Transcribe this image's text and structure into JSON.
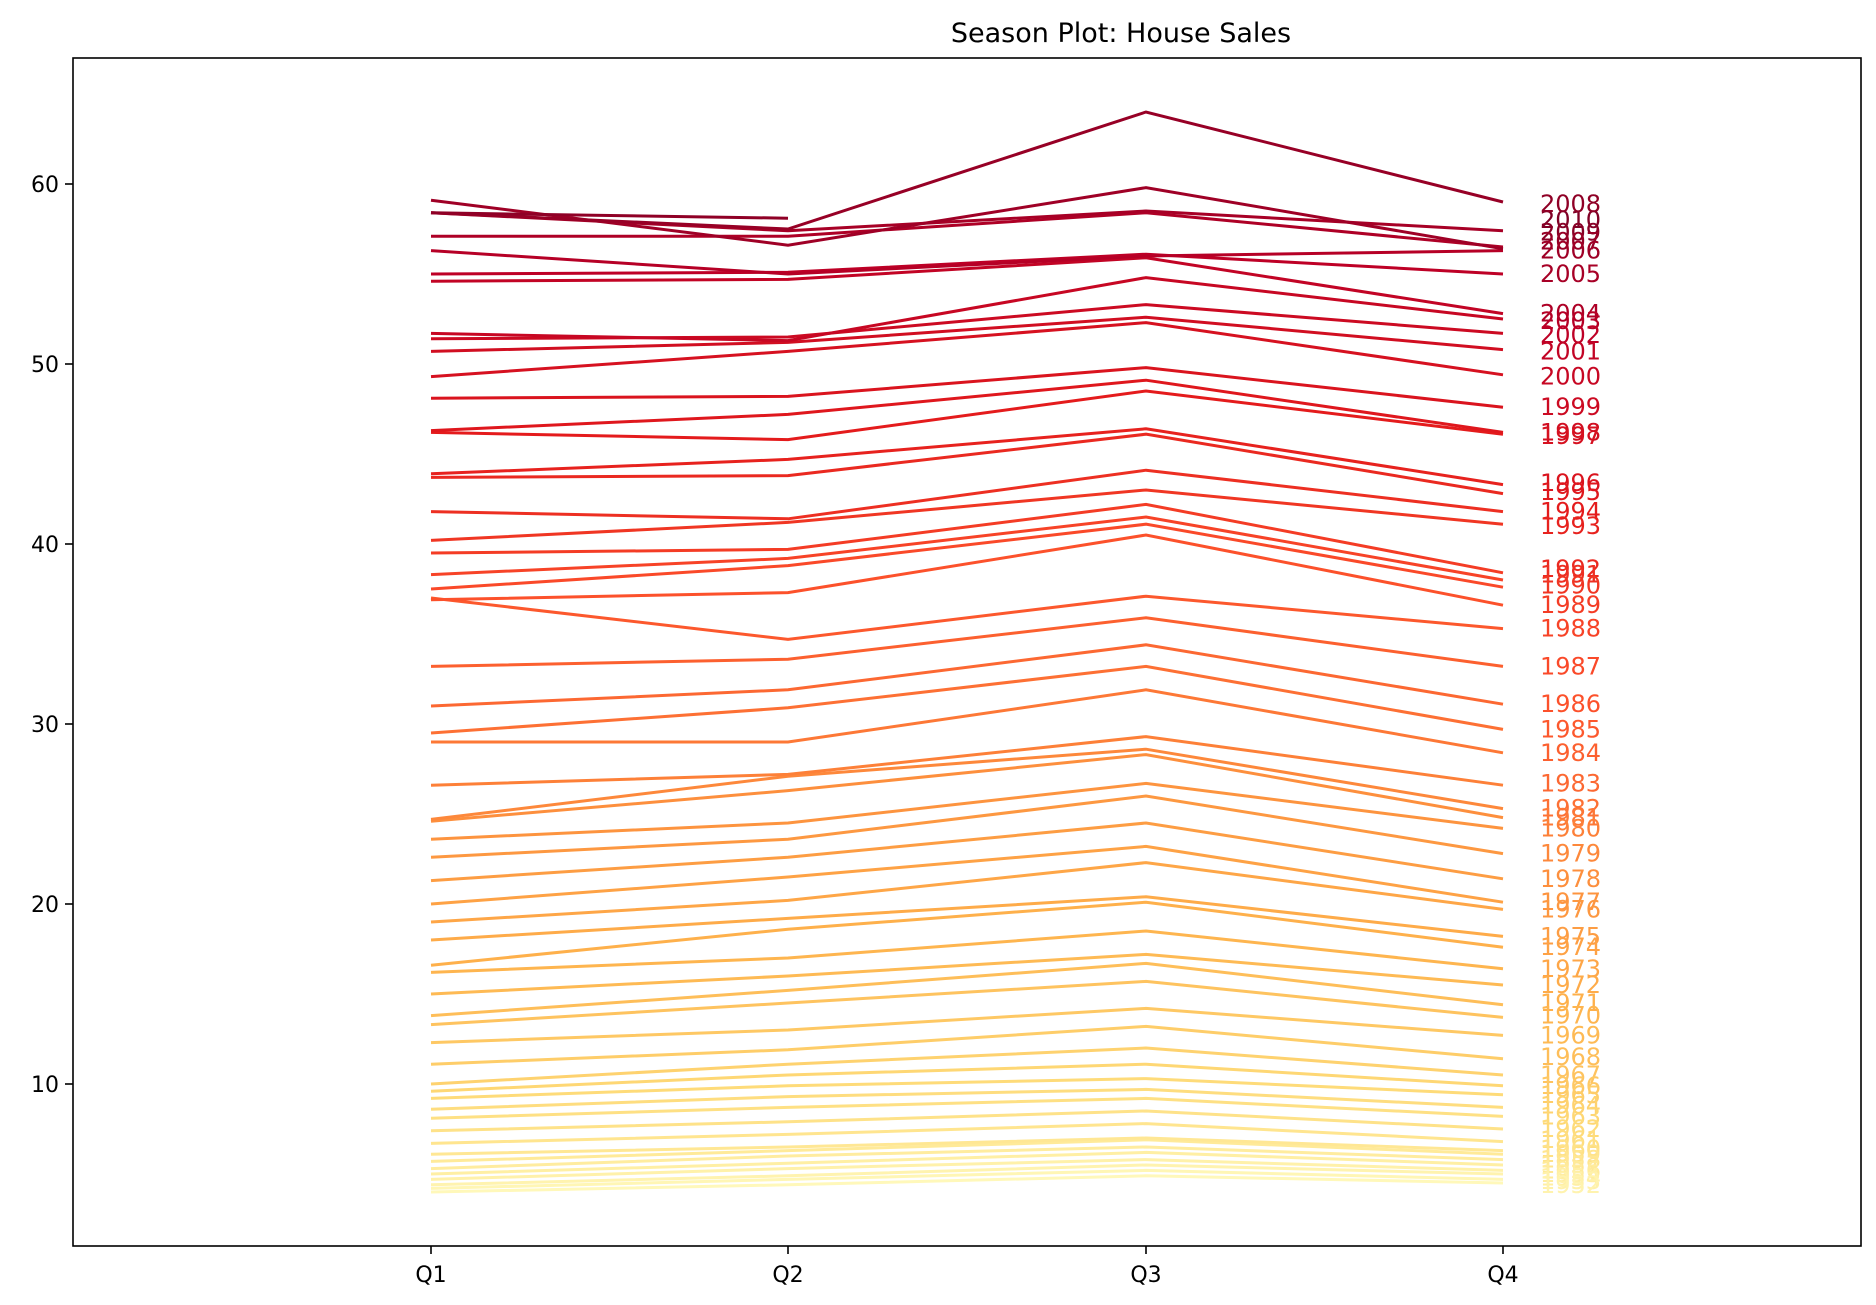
{
  "chart_data": {
    "type": "line",
    "title": "Season Plot: House Sales",
    "xlabel": "",
    "ylabel": "",
    "categories": [
      "Q1",
      "Q2",
      "Q3",
      "Q4"
    ],
    "ylim": [
      1,
      67
    ],
    "yticks": [
      10,
      20,
      30,
      40,
      50,
      60
    ],
    "grid": false,
    "legend": "none",
    "colormap": "YlOrRd",
    "series": [
      {
        "name": "1950",
        "values": [
          4.0,
          4.4,
          4.9,
          4.5
        ]
      },
      {
        "name": "1951",
        "values": [
          4.2,
          4.7,
          5.2,
          4.7
        ]
      },
      {
        "name": "1952",
        "values": [
          4.4,
          4.9,
          5.5,
          5.0
        ]
      },
      {
        "name": "1953",
        "values": [
          4.7,
          5.3,
          5.8,
          5.2
        ]
      },
      {
        "name": "1954",
        "values": [
          5.0,
          5.6,
          6.2,
          5.5
        ]
      },
      {
        "name": "1955",
        "values": [
          5.3,
          6.0,
          6.5,
          5.8
        ]
      },
      {
        "name": "1956",
        "values": [
          5.7,
          6.3,
          6.9,
          6.1
        ]
      },
      {
        "name": "1957",
        "values": [
          6.1,
          6.5,
          7.0,
          6.3
        ]
      },
      {
        "name": "1958",
        "values": [
          6.7,
          7.2,
          7.8,
          6.8
        ]
      },
      {
        "name": "1959",
        "values": [
          7.4,
          7.9,
          8.5,
          7.5
        ]
      },
      {
        "name": "1960",
        "values": [
          8.1,
          8.7,
          9.2,
          8.2
        ]
      },
      {
        "name": "1961",
        "values": [
          8.6,
          9.3,
          9.7,
          8.7
        ]
      },
      {
        "name": "1962",
        "values": [
          9.2,
          9.9,
          10.3,
          9.4
        ]
      },
      {
        "name": "1963",
        "values": [
          9.6,
          10.5,
          11.1,
          9.9
        ]
      },
      {
        "name": "1964",
        "values": [
          10.0,
          11.1,
          12.0,
          10.5
        ]
      },
      {
        "name": "1965",
        "values": [
          11.1,
          11.9,
          13.2,
          11.4
        ]
      },
      {
        "name": "1966",
        "values": [
          12.3,
          13.0,
          14.2,
          12.7
        ]
      },
      {
        "name": "1967",
        "values": [
          13.3,
          14.5,
          15.7,
          13.7
        ]
      },
      {
        "name": "1968",
        "values": [
          13.8,
          15.2,
          16.7,
          14.4
        ]
      },
      {
        "name": "1969",
        "values": [
          15.0,
          16.0,
          17.2,
          15.5
        ]
      },
      {
        "name": "1970",
        "values": [
          16.2,
          17.0,
          18.5,
          16.4
        ]
      },
      {
        "name": "1971",
        "values": [
          16.6,
          18.6,
          20.1,
          17.6
        ]
      },
      {
        "name": "1972",
        "values": [
          18.0,
          19.2,
          20.4,
          18.2
        ]
      },
      {
        "name": "1973",
        "values": [
          19.0,
          20.2,
          22.3,
          19.7
        ]
      },
      {
        "name": "1974",
        "values": [
          20.0,
          21.5,
          23.2,
          20.1
        ]
      },
      {
        "name": "1975",
        "values": [
          21.3,
          22.6,
          24.5,
          21.4
        ]
      },
      {
        "name": "1976",
        "values": [
          22.6,
          23.6,
          26.0,
          22.8
        ]
      },
      {
        "name": "1977",
        "values": [
          23.6,
          24.5,
          26.7,
          24.2
        ]
      },
      {
        "name": "1978",
        "values": [
          24.6,
          26.3,
          28.3,
          24.8
        ]
      },
      {
        "name": "1979",
        "values": [
          24.7,
          27.1,
          28.6,
          25.3
        ]
      },
      {
        "name": "1980",
        "values": [
          26.6,
          27.2,
          29.3,
          26.6
        ]
      },
      {
        "name": "1981",
        "values": [
          29.0,
          29.0,
          31.9,
          28.4
        ]
      },
      {
        "name": "1982",
        "values": [
          29.5,
          30.9,
          33.2,
          29.7
        ]
      },
      {
        "name": "1983",
        "values": [
          31.0,
          31.9,
          34.4,
          31.1
        ]
      },
      {
        "name": "1984",
        "values": [
          33.2,
          33.6,
          35.9,
          33.2
        ]
      },
      {
        "name": "1985",
        "values": [
          37.0,
          34.7,
          37.1,
          35.3
        ]
      },
      {
        "name": "1986",
        "values": [
          36.9,
          37.3,
          40.5,
          36.6
        ]
      },
      {
        "name": "1987",
        "values": [
          37.5,
          38.8,
          41.1,
          37.6
        ]
      },
      {
        "name": "1988",
        "values": [
          38.3,
          39.2,
          41.5,
          38.0
        ]
      },
      {
        "name": "1989",
        "values": [
          39.5,
          39.7,
          42.2,
          38.4
        ]
      },
      {
        "name": "1990",
        "values": [
          40.2,
          41.2,
          43.0,
          41.1
        ]
      },
      {
        "name": "1991",
        "values": [
          41.8,
          41.4,
          44.1,
          41.8
        ]
      },
      {
        "name": "1992",
        "values": [
          43.7,
          43.8,
          46.1,
          42.8
        ]
      },
      {
        "name": "1993",
        "values": [
          43.9,
          44.7,
          46.4,
          43.3
        ]
      },
      {
        "name": "1994",
        "values": [
          46.2,
          45.8,
          48.5,
          46.1
        ]
      },
      {
        "name": "1995",
        "values": [
          46.3,
          47.2,
          49.1,
          46.2
        ]
      },
      {
        "name": "1996",
        "values": [
          48.1,
          48.2,
          49.8,
          47.6
        ]
      },
      {
        "name": "1997",
        "values": [
          49.3,
          50.7,
          52.3,
          49.4
        ]
      },
      {
        "name": "1998",
        "values": [
          50.7,
          51.2,
          52.6,
          50.8
        ]
      },
      {
        "name": "1999",
        "values": [
          51.4,
          51.5,
          53.3,
          51.7
        ]
      },
      {
        "name": "2000",
        "values": [
          51.7,
          51.3,
          54.8,
          52.5
        ]
      },
      {
        "name": "2001",
        "values": [
          54.6,
          54.7,
          55.9,
          52.8
        ]
      },
      {
        "name": "2002",
        "values": [
          55.0,
          55.1,
          56.1,
          55.0
        ]
      },
      {
        "name": "2003",
        "values": [
          56.3,
          55.0,
          56.0,
          56.3
        ]
      },
      {
        "name": "2004",
        "values": [
          57.1,
          57.1,
          58.4,
          56.5
        ]
      },
      {
        "name": "2005",
        "values": [
          58.4,
          57.4,
          58.5,
          57.4
        ]
      },
      {
        "name": "2006",
        "values": [
          59.1,
          56.6,
          59.8,
          56.4
        ]
      },
      {
        "name": "2007",
        "values": [
          58.4,
          57.5,
          64.0,
          59.0
        ]
      },
      {
        "name": "2008",
        "values": [
          58.4,
          58.1,
          null,
          null
        ]
      }
    ],
    "end_labels": [
      {
        "text": "2010",
        "y": 58.0
      },
      {
        "text": "2009",
        "y": 57.3
      },
      {
        "text": "2008",
        "y": 58.9
      },
      {
        "text": "2007",
        "y": 56.8
      },
      {
        "text": "2006",
        "y": 56.3
      },
      {
        "text": "2005",
        "y": 55.0
      },
      {
        "text": "2004",
        "y": 52.8
      },
      {
        "text": "2003",
        "y": 52.4
      },
      {
        "text": "2002",
        "y": 51.6
      },
      {
        "text": "2001",
        "y": 50.7
      },
      {
        "text": "2000",
        "y": 49.3
      },
      {
        "text": "1999",
        "y": 47.6
      },
      {
        "text": "1998",
        "y": 46.2
      },
      {
        "text": "1997",
        "y": 46.0
      },
      {
        "text": "1996",
        "y": 43.4
      },
      {
        "text": "1995",
        "y": 42.9
      },
      {
        "text": "1994",
        "y": 41.8
      },
      {
        "text": "1993",
        "y": 41.0
      },
      {
        "text": "1992",
        "y": 38.6
      },
      {
        "text": "1991",
        "y": 38.3
      },
      {
        "text": "1990",
        "y": 37.7
      },
      {
        "text": "1989",
        "y": 36.6
      },
      {
        "text": "1988",
        "y": 35.3
      },
      {
        "text": "1987",
        "y": 33.2
      },
      {
        "text": "1986",
        "y": 31.1
      },
      {
        "text": "1985",
        "y": 29.7
      },
      {
        "text": "1984",
        "y": 28.4
      },
      {
        "text": "1983",
        "y": 26.7
      },
      {
        "text": "1982",
        "y": 25.3
      },
      {
        "text": "1981",
        "y": 24.8
      },
      {
        "text": "1980",
        "y": 24.2
      },
      {
        "text": "1979",
        "y": 22.8
      },
      {
        "text": "1978",
        "y": 21.4
      },
      {
        "text": "1977",
        "y": 20.1
      },
      {
        "text": "1976",
        "y": 19.7
      },
      {
        "text": "1975",
        "y": 18.2
      },
      {
        "text": "1974",
        "y": 17.6
      },
      {
        "text": "1973",
        "y": 16.4
      },
      {
        "text": "1972",
        "y": 15.5
      },
      {
        "text": "1971",
        "y": 14.5
      },
      {
        "text": "1970",
        "y": 13.8
      },
      {
        "text": "1969",
        "y": 12.7
      },
      {
        "text": "1968",
        "y": 11.5
      },
      {
        "text": "1967",
        "y": 10.5
      },
      {
        "text": "1966",
        "y": 9.9
      },
      {
        "text": "1965",
        "y": 9.4
      },
      {
        "text": "1964",
        "y": 8.8
      },
      {
        "text": "1963",
        "y": 8.2
      },
      {
        "text": "1962",
        "y": 7.5
      },
      {
        "text": "1961",
        "y": 6.9
      },
      {
        "text": "1960",
        "y": 6.4
      },
      {
        "text": "1959",
        "y": 6.1
      },
      {
        "text": "1958",
        "y": 5.8
      },
      {
        "text": "1957",
        "y": 5.5
      },
      {
        "text": "1956",
        "y": 5.2
      },
      {
        "text": "1955",
        "y": 5.0
      },
      {
        "text": "1954",
        "y": 4.8
      },
      {
        "text": "1953",
        "y": 4.6
      },
      {
        "text": "1952",
        "y": 4.4
      }
    ]
  }
}
